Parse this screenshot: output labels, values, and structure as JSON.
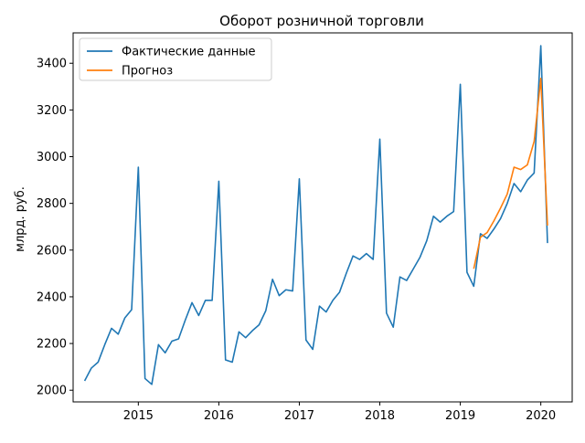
{
  "chart_data": {
    "type": "line",
    "title": "Оборот розничной торговли",
    "xlabel": "",
    "ylabel": "млрд. руб.",
    "xlim": [
      2014.19,
      2020.39
    ],
    "ylim": [
      1950,
      3530
    ],
    "x_ticks": [
      2015,
      2016,
      2017,
      2018,
      2019,
      2020
    ],
    "x_tick_labels": [
      "2015",
      "2016",
      "2017",
      "2018",
      "2019",
      "2020"
    ],
    "y_ticks": [
      2000,
      2200,
      2400,
      2600,
      2800,
      3000,
      3200,
      3400
    ],
    "y_tick_labels": [
      "2000",
      "2200",
      "2400",
      "2600",
      "2800",
      "3000",
      "3200",
      "3400"
    ],
    "grid": false,
    "legend_position": "top-left",
    "series": [
      {
        "name": "Фактические данные",
        "color": "#1f77b4",
        "x": [
          2014.333,
          2014.417,
          2014.5,
          2014.583,
          2014.667,
          2014.75,
          2014.833,
          2014.917,
          2015.0,
          2015.083,
          2015.167,
          2015.25,
          2015.333,
          2015.417,
          2015.5,
          2015.583,
          2015.667,
          2015.75,
          2015.833,
          2015.917,
          2016.0,
          2016.083,
          2016.167,
          2016.25,
          2016.333,
          2016.417,
          2016.5,
          2016.583,
          2016.667,
          2016.75,
          2016.833,
          2016.917,
          2017.0,
          2017.083,
          2017.167,
          2017.25,
          2017.333,
          2017.417,
          2017.5,
          2017.583,
          2017.667,
          2017.75,
          2017.833,
          2017.917,
          2018.0,
          2018.083,
          2018.167,
          2018.25,
          2018.333,
          2018.417,
          2018.5,
          2018.583,
          2018.667,
          2018.75,
          2018.833,
          2018.917,
          2019.0,
          2019.083,
          2019.167,
          2019.25,
          2019.333,
          2019.417,
          2019.5,
          2019.583,
          2019.667,
          2019.75,
          2019.833,
          2019.917,
          2020.0,
          2020.083
        ],
        "y": [
          2040,
          2095,
          2120,
          2195,
          2265,
          2240,
          2310,
          2345,
          2955,
          2050,
          2025,
          2195,
          2160,
          2210,
          2220,
          2300,
          2375,
          2320,
          2385,
          2385,
          2895,
          2130,
          2120,
          2250,
          2225,
          2255,
          2280,
          2340,
          2475,
          2405,
          2430,
          2425,
          2905,
          2215,
          2175,
          2360,
          2335,
          2385,
          2420,
          2500,
          2575,
          2560,
          2585,
          2560,
          3075,
          2330,
          2270,
          2485,
          2470,
          2520,
          2570,
          2640,
          2745,
          2720,
          2745,
          2765,
          3310,
          2505,
          2445,
          2670,
          2650,
          2690,
          2735,
          2800,
          2885,
          2850,
          2900,
          2930,
          3475,
          2630
        ]
      },
      {
        "name": "Прогноз",
        "color": "#ff7f0e",
        "x": [
          2019.167,
          2019.25,
          2019.333,
          2019.417,
          2019.5,
          2019.583,
          2019.667,
          2019.75,
          2019.833,
          2019.917,
          2020.0,
          2020.083
        ],
        "y": [
          2520,
          2655,
          2675,
          2725,
          2780,
          2840,
          2955,
          2945,
          2965,
          3065,
          3335,
          2705
        ]
      }
    ]
  }
}
